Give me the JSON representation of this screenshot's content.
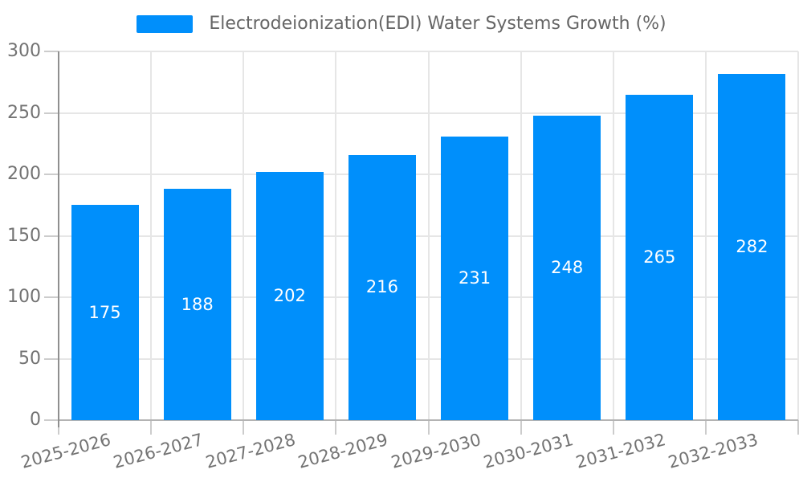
{
  "legend": {
    "label": "Electrodeionization(EDI) Water Systems Growth (%)"
  },
  "chart_data": {
    "type": "bar",
    "title": "Electrodeionization(EDI) Water Systems Growth (%)",
    "categories": [
      "2025-2026",
      "2026-2027",
      "2027-2028",
      "2028-2029",
      "2029-2030",
      "2030-2031",
      "2031-2032",
      "2032-2033"
    ],
    "series": [
      {
        "name": "Electrodeionization(EDI) Water Systems Growth (%)",
        "values": [
          175,
          188,
          202,
          216,
          231,
          248,
          265,
          282
        ]
      }
    ],
    "xlabel": "",
    "ylabel": "",
    "ylim": [
      0,
      300
    ],
    "yticks": [
      0,
      50,
      100,
      150,
      200,
      250,
      300
    ],
    "grid": true,
    "legend_position": "top",
    "value_labels": "inside-center",
    "xlabel_rotation_deg": -15
  },
  "colors": {
    "bar": "#008FFB",
    "bar_label": "#ffffff",
    "grid": "#e6e6e6",
    "x_axis_line": "#b3b3b3",
    "y_axis_line": "#8f8f8f",
    "tick": "#cccccc",
    "axis_text": "#737373",
    "legend_text": "#666666",
    "background": "#ffffff"
  }
}
